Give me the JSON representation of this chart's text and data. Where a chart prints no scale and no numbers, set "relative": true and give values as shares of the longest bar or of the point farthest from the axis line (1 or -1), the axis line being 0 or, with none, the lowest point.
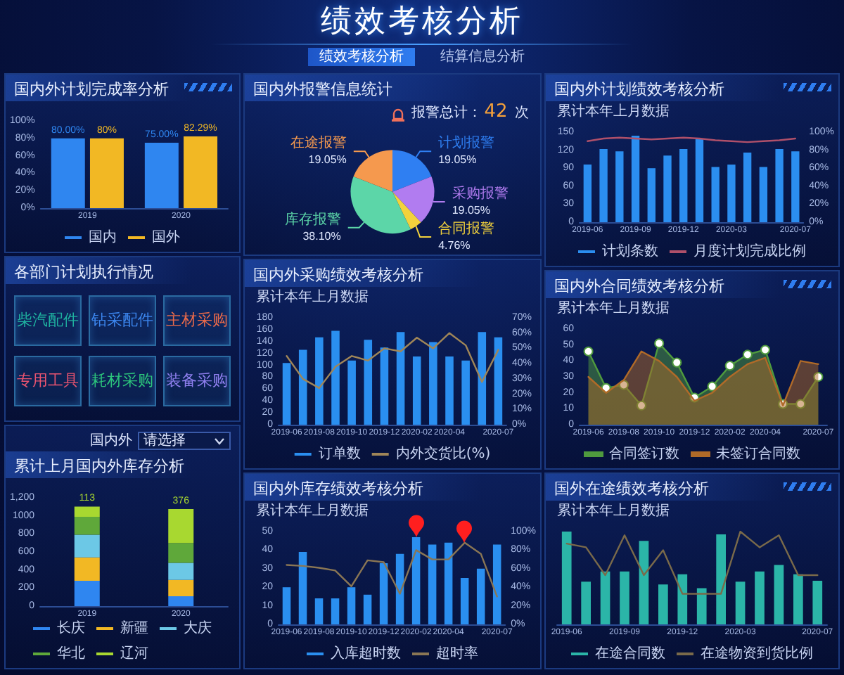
{
  "chart_data": [
    {
      "type": "other",
      "title": "绩效考核分析",
      "annotations": [
        "绩效考核分析",
        "结算信息分析"
      ]
    },
    {
      "type": "bar",
      "title": "国内外计划完成率分析",
      "categories": [
        "2019",
        "2020"
      ],
      "series": [
        {
          "name": "国内",
          "color": "#2f86f0",
          "values": [
            80,
            75
          ],
          "value_labels": [
            "80.00%",
            "75.00%"
          ]
        },
        {
          "name": "国外",
          "color": "#f2b824",
          "values": [
            80,
            82.29
          ],
          "value_labels": [
            "80%",
            "82.29%"
          ]
        }
      ],
      "ylim": [
        0,
        100
      ],
      "yticks": [
        {
          "value": 0,
          "label": "0%"
        },
        {
          "value": 20,
          "label": "20%"
        },
        {
          "value": 40,
          "label": "40%"
        },
        {
          "value": 60,
          "label": "60%"
        },
        {
          "value": 80,
          "label": "80%"
        },
        {
          "value": 100,
          "label": "100%"
        }
      ],
      "legend": "bottom"
    },
    {
      "type": "other",
      "title": "各部门计划执行情况",
      "annotations": [
        "柴汽配件",
        "钻采配件",
        "主材采购",
        "专用工具",
        "耗材采购",
        "装备采购"
      ]
    },
    {
      "type": "bar",
      "stacked": true,
      "title": "累计上月国内外库存分析",
      "annotations": [
        "国内外",
        "请选择"
      ],
      "categories": [
        "2019",
        "2020"
      ],
      "series": [
        {
          "name": "长庆",
          "color": "#2f86f0",
          "values": [
            280,
            110
          ]
        },
        {
          "name": "新疆",
          "color": "#f2b824",
          "values": [
            260,
            180
          ]
        },
        {
          "name": "大庆",
          "color": "#6cc8e6",
          "values": [
            250,
            190
          ]
        },
        {
          "name": "华北",
          "color": "#5fa83a",
          "values": [
            200,
            220
          ]
        },
        {
          "name": "辽河",
          "color": "#a8d830",
          "values": [
            113,
            376
          ],
          "value_labels": [
            "113",
            "376"
          ]
        }
      ],
      "ylim": [
        0,
        1200
      ],
      "yticks": [
        0,
        200,
        400,
        600,
        800,
        1000,
        {
          "value": 1200,
          "label": "1,200"
        }
      ],
      "legend": "bottom"
    },
    {
      "type": "pie",
      "title": "国内外报警信息统计",
      "annotations": [
        "报警总计：42 次"
      ],
      "categories": [
        "计划报警",
        "采购报警",
        "合同报警",
        "库存报警",
        "在途报警"
      ],
      "values": [
        19.05,
        19.05,
        4.76,
        38.1,
        19.05
      ],
      "colors": [
        "#2f7ff2",
        "#b17cf0",
        "#f3d23c",
        "#5cd6a8",
        "#f5994e"
      ],
      "value_labels": [
        "19.05%",
        "19.05%",
        "4.76%",
        "38.10%",
        "19.05%"
      ]
    },
    {
      "type": "bar",
      "title": "国内外采购绩效考核分析",
      "subtitle": "累计本年上月数据",
      "categories": [
        "2019-06",
        null,
        "2019-08",
        null,
        "2019-10",
        null,
        "2019-12",
        null,
        "2020-02",
        null,
        "2020-04",
        null,
        null,
        "2020-07"
      ],
      "series": [
        {
          "name": "订单数",
          "color": "#2a8ff0",
          "values": [
            104,
            126,
            147,
            158,
            108,
            143,
            130,
            156,
            115,
            139,
            115,
            108,
            156,
            147
          ]
        },
        {
          "name": "内外交货比(%)",
          "type": "line",
          "axis": "y2",
          "color": "#a08658",
          "values": [
            45,
            30,
            24,
            38,
            45,
            42,
            50,
            48,
            57,
            50,
            60,
            52,
            28,
            49
          ]
        }
      ],
      "ylim": [
        0,
        180
      ],
      "yticks": [
        0,
        20,
        40,
        60,
        80,
        100,
        120,
        140,
        160,
        180
      ],
      "y2lim": [
        0,
        70
      ],
      "y2ticks": [
        {
          "value": 0,
          "label": "0%"
        },
        {
          "value": 10,
          "label": "10%"
        },
        {
          "value": 20,
          "label": "20%"
        },
        {
          "value": 30,
          "label": "30%"
        },
        {
          "value": 40,
          "label": "40%"
        },
        {
          "value": 50,
          "label": "50%"
        },
        {
          "value": 60,
          "label": "60%"
        },
        {
          "value": 70,
          "label": "70%"
        }
      ],
      "legend": "bottom"
    },
    {
      "type": "bar",
      "title": "国内外库存绩效考核分析",
      "subtitle": "累计本年上月数据",
      "categories": [
        "2019-06",
        null,
        "2019-08",
        null,
        "2019-10",
        null,
        "2019-12",
        null,
        "2020-02",
        null,
        "2020-04",
        null,
        null,
        "2020-07"
      ],
      "series": [
        {
          "name": "入库超时数",
          "color": "#2a8ff0",
          "values": [
            20,
            39,
            14,
            14,
            20,
            16,
            33,
            38,
            47,
            43,
            44,
            25,
            30,
            43
          ]
        },
        {
          "name": "超时率",
          "type": "line",
          "axis": "y2",
          "color": "#8a7654",
          "values": [
            64,
            63,
            61,
            58,
            41,
            69,
            67,
            33,
            80,
            70,
            70,
            88,
            76,
            30
          ]
        }
      ],
      "ylim": [
        0,
        50
      ],
      "yticks": [
        0,
        10,
        20,
        30,
        40,
        50
      ],
      "y2lim": [
        0,
        100
      ],
      "y2ticks": [
        {
          "value": 0,
          "label": "0%"
        },
        {
          "value": 20,
          "label": "20%"
        },
        {
          "value": 40,
          "label": "40%"
        },
        {
          "value": 60,
          "label": "60%"
        },
        {
          "value": 80,
          "label": "80%"
        },
        {
          "value": 100,
          "label": "100%"
        }
      ],
      "legend": "bottom"
    },
    {
      "type": "bar",
      "title": "国内外计划绩效考核分析",
      "subtitle": "累计本年上月数据",
      "categories": [
        "2019-06",
        null,
        null,
        "2019-09",
        null,
        null,
        "2019-12",
        null,
        null,
        "2020-03",
        null,
        null,
        null,
        "2020-07"
      ],
      "series": [
        {
          "name": "计划条数",
          "color": "#2b8ef0",
          "values": [
            96,
            122,
            118,
            144,
            90,
            111,
            122,
            139,
            92,
            96,
            116,
            92,
            122,
            118
          ]
        },
        {
          "name": "月度计划完成比例",
          "type": "line",
          "axis": "y2",
          "color": "#b0506a",
          "values": [
            90,
            93,
            94,
            93,
            92,
            93,
            94,
            93,
            91,
            90,
            89,
            90,
            91,
            93
          ]
        }
      ],
      "ylim": [
        0,
        150
      ],
      "yticks": [
        0,
        30,
        60,
        90,
        120,
        150
      ],
      "y2lim": [
        0,
        100
      ],
      "y2ticks": [
        {
          "value": 0,
          "label": "0%"
        },
        {
          "value": 20,
          "label": "20%"
        },
        {
          "value": 40,
          "label": "40%"
        },
        {
          "value": 60,
          "label": "60%"
        },
        {
          "value": 80,
          "label": "80%"
        },
        {
          "value": 100,
          "label": "100%"
        }
      ],
      "legend": "bottom"
    },
    {
      "type": "area",
      "title": "国内外合同绩效考核分析",
      "subtitle": "累计本年上月数据",
      "categories": [
        "2019-06",
        null,
        "2019-08",
        null,
        "2019-10",
        null,
        "2019-12",
        null,
        "2020-02",
        null,
        "2020-04",
        null,
        null,
        "2020-07"
      ],
      "series": [
        {
          "name": "合同签订数",
          "color": "#4f9a3e",
          "marker": "circle",
          "values": [
            46,
            23,
            25,
            12,
            51,
            39,
            17,
            24,
            37,
            44,
            47,
            13,
            13,
            30
          ]
        },
        {
          "name": "未签订合同数",
          "color": "#b06a28",
          "values": [
            30,
            20,
            28,
            46,
            40,
            30,
            15,
            20,
            30,
            38,
            42,
            12,
            40,
            38
          ]
        }
      ],
      "ylim": [
        0,
        60
      ],
      "yticks": [
        0,
        10,
        20,
        30,
        40,
        50,
        60
      ],
      "legend": "bottom"
    },
    {
      "type": "bar",
      "relative": true,
      "title": "国外在途绩效考核分析",
      "subtitle": "累计本年上月数据",
      "categories": [
        "2019-06",
        null,
        null,
        "2019-09",
        null,
        null,
        "2019-12",
        null,
        null,
        "2020-03",
        null,
        null,
        null,
        "2020-07"
      ],
      "series": [
        {
          "name": "在途合同数",
          "color": "#2bb5a8",
          "values": [
            1,
            0.46,
            0.57,
            0.57,
            0.9,
            0.43,
            0.54,
            0.39,
            0.97,
            0.46,
            0.57,
            0.64,
            0.54,
            0.47
          ]
        },
        {
          "name": "在途物资到货比例",
          "type": "line",
          "axis": "y2",
          "color": "#7a6a4a",
          "values": [
            0.87,
            0.83,
            0.53,
            0.96,
            0.53,
            0.8,
            0.33,
            0.33,
            0.33,
            1,
            0.83,
            0.96,
            0.53,
            0.53
          ]
        }
      ],
      "legend": "bottom"
    }
  ]
}
